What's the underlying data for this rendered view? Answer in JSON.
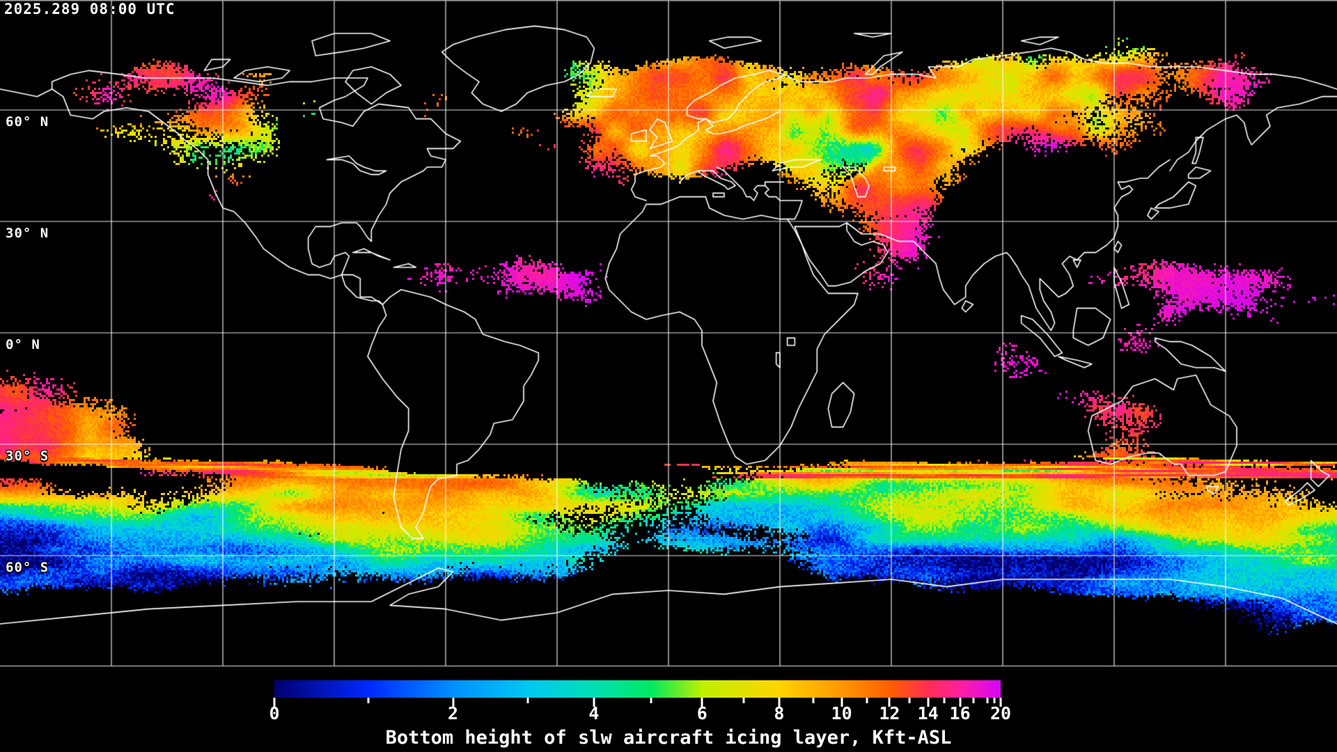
{
  "header": {
    "timestamp": "2025.289 08:00 UTC"
  },
  "map": {
    "background_color": "#000000",
    "coastline_color": "#ffffff",
    "gridline_color": "#ffffff",
    "border_color": "#aaaaaa",
    "grid_longitude_step_deg": 30,
    "grid_latitude_step_deg": 30,
    "latitude_labels": [
      {
        "text": "60° N",
        "lat": 60
      },
      {
        "text": "30° N",
        "lat": 30
      },
      {
        "text": "0° N",
        "lat": 0
      },
      {
        "text": "30° S",
        "lat": -30
      },
      {
        "text": "60° S",
        "lat": -60
      }
    ]
  },
  "colorbar": {
    "title": "Bottom height of slw aircraft icing layer, Kft-ASL",
    "units": "Kft-ASL",
    "min": 0,
    "max": 20,
    "labeled_ticks": [
      0,
      2,
      4,
      6,
      8,
      10,
      12,
      14,
      16,
      20
    ],
    "tick_positions": [
      [
        0,
        0.0
      ],
      [
        1,
        0.129
      ],
      [
        2,
        0.246
      ],
      [
        3,
        0.349
      ],
      [
        4,
        0.44
      ],
      [
        5,
        0.519
      ],
      [
        6,
        0.589
      ],
      [
        7,
        0.646
      ],
      [
        8,
        0.695
      ],
      [
        9,
        0.742
      ],
      [
        10,
        0.781
      ],
      [
        11,
        0.816
      ],
      [
        12,
        0.847
      ],
      [
        13,
        0.874
      ],
      [
        14,
        0.9
      ],
      [
        15,
        0.922
      ],
      [
        16,
        0.944
      ],
      [
        17,
        0.963
      ],
      [
        18,
        0.982
      ],
      [
        19,
        0.991
      ],
      [
        20,
        1.0
      ]
    ],
    "gradient_stops": [
      [
        0.0,
        "#00006E"
      ],
      [
        0.129,
        "#0028FF"
      ],
      [
        0.246,
        "#0090FF"
      ],
      [
        0.349,
        "#00C8F2"
      ],
      [
        0.44,
        "#00DFB4"
      ],
      [
        0.519,
        "#00E95F"
      ],
      [
        0.589,
        "#BFF000"
      ],
      [
        0.695,
        "#FFD400"
      ],
      [
        0.781,
        "#FF9700"
      ],
      [
        0.847,
        "#FF5F00"
      ],
      [
        0.9,
        "#FF2E52"
      ],
      [
        0.944,
        "#FF1FA0"
      ],
      [
        1.0,
        "#D803F8"
      ]
    ]
  }
}
